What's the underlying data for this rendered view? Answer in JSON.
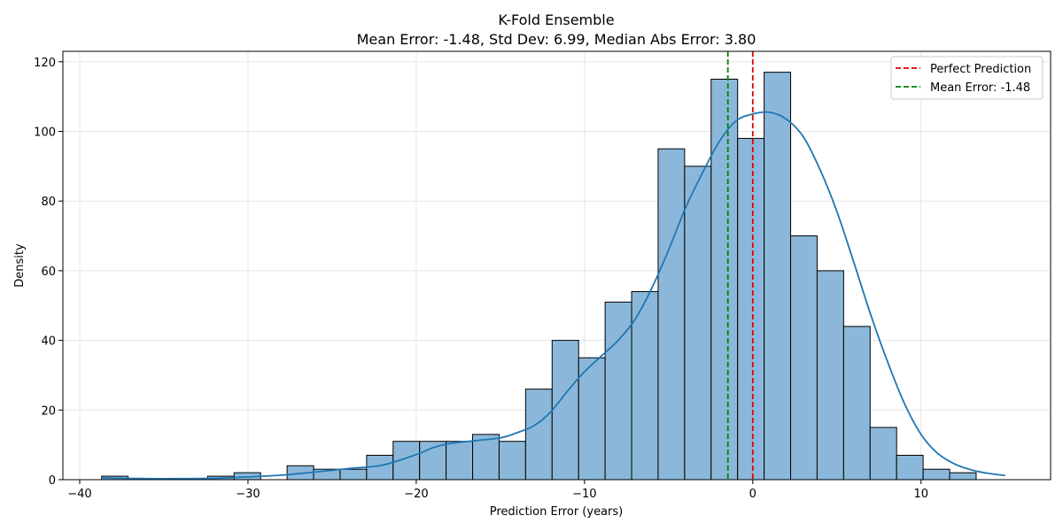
{
  "chart_data": {
    "type": "histogram",
    "title": "K-Fold Ensemble",
    "subtitle": "Mean Error: -1.48, Std Dev: 6.99, Median Abs Error: 3.80",
    "xlabel": "Prediction Error (years)",
    "ylabel": "Density",
    "xlim": [
      -41,
      17.7
    ],
    "ylim": [
      0,
      123
    ],
    "xticks": [
      -40,
      -30,
      -20,
      -10,
      0,
      10
    ],
    "xtick_labels": [
      "−40",
      "−30",
      "−20",
      "−10",
      "0",
      "10"
    ],
    "yticks": [
      0,
      20,
      40,
      60,
      80,
      100,
      120
    ],
    "ytick_labels": [
      "0",
      "20",
      "40",
      "60",
      "80",
      "100",
      "120"
    ],
    "grid": true,
    "bin_start": -38.7,
    "bin_width": 1.575,
    "counts": [
      1,
      0,
      0,
      0,
      1,
      2,
      0,
      4,
      3,
      3,
      7,
      11,
      11,
      11,
      13,
      11,
      26,
      40,
      35,
      51,
      54,
      95,
      90,
      115,
      98,
      117,
      70,
      60,
      44,
      15,
      7,
      3,
      2
    ],
    "bar_color": "#8bb8da",
    "bar_edge_color": "#000000",
    "kde": {
      "color": "#1f77b4",
      "x": [
        -38.7,
        -36,
        -34,
        -32,
        -30,
        -28,
        -26,
        -24,
        -22,
        -20,
        -19,
        -18,
        -16.5,
        -15,
        -14,
        -13,
        -12,
        -11,
        -10,
        -9,
        -8,
        -7,
        -6,
        -5,
        -4,
        -3,
        -2,
        -1,
        0,
        1,
        2,
        3,
        4,
        5,
        6,
        7,
        8,
        9,
        10,
        11,
        12,
        13,
        14,
        15
      ],
      "y": [
        0.5,
        0.3,
        0.3,
        0.4,
        0.8,
        1.3,
        2.2,
        3.2,
        4.2,
        7.2,
        9.2,
        10.4,
        11.2,
        12.0,
        13.5,
        15.5,
        19.5,
        25.5,
        31,
        35.5,
        40,
        46,
        55,
        66,
        78,
        88,
        97,
        103,
        105,
        105.5,
        103.5,
        98.5,
        89,
        77,
        62.5,
        47.5,
        34,
        22,
        13,
        7.5,
        4.5,
        2.8,
        1.8,
        1.2
      ]
    },
    "lines": [
      {
        "label": "Perfect Prediction",
        "x": 0,
        "color": "#e00000"
      },
      {
        "label": "Mean Error: -1.48",
        "x": -1.48,
        "color": "#008000"
      }
    ],
    "legend_position": "top-right"
  }
}
